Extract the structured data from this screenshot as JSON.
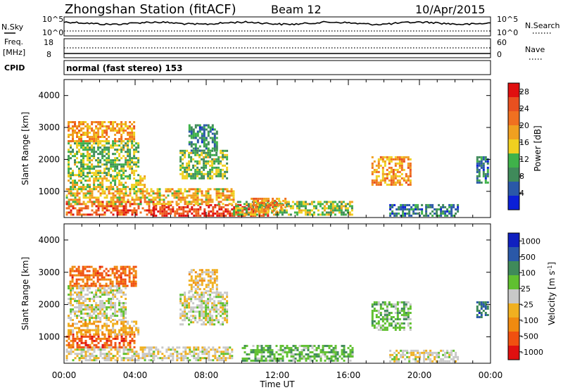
{
  "header": {
    "station": "Zhongshan Station (fitACF)",
    "beam": "Beam 12",
    "date": "10/Apr/2015"
  },
  "noise_panel": {
    "left_label": "N.Sky",
    "right_label": "N.Search",
    "left_ticks": [
      "10^5",
      "10^0"
    ],
    "right_ticks": [
      "10^5",
      "10^0"
    ]
  },
  "freq_panel": {
    "left_label_1": "Freq.",
    "left_label_2": "[MHz]",
    "left_ticks": [
      "18",
      "8"
    ],
    "right_label": "Nave",
    "right_ticks": [
      "60",
      "0"
    ]
  },
  "cpid": {
    "label": "CPID",
    "mode_text": "normal (fast stereo) 153"
  },
  "colors": {
    "power_scale": [
      "#0b1fd8",
      "#2a58a8",
      "#3f8a5a",
      "#3fb24a",
      "#f0d020",
      "#f0a020",
      "#f07020",
      "#e85020",
      "#e01010"
    ],
    "velocity_scale": [
      "#e01010",
      "#f05010",
      "#f08a10",
      "#f0b020",
      "#c8c8c8",
      "#60c030",
      "#3f8a5a",
      "#2a58a8",
      "#1020c0"
    ]
  },
  "chart_data": [
    {
      "type": "heatmap",
      "name": "power-panel",
      "title": "",
      "xlabel": "Time UT",
      "ylabel": "Slant Range [km]",
      "x_ticks": [
        "00:00",
        "04:00",
        "08:00",
        "12:00",
        "16:00",
        "20:00",
        "00:00"
      ],
      "x_range_hours": [
        0,
        24
      ],
      "y_ticks": [
        1000,
        2000,
        3000,
        4000
      ],
      "ylim": [
        180,
        4500
      ],
      "colorbar": {
        "label": "Power [dB]",
        "ticks": [
          "4",
          "8",
          "12",
          "16",
          "20",
          "24",
          "28"
        ],
        "range": [
          0,
          30
        ]
      },
      "patches": [
        {
          "t0": 0.1,
          "t1": 5.0,
          "r0": 250,
          "r1": 700,
          "value": 24
        },
        {
          "t0": 5.0,
          "t1": 11.5,
          "r0": 250,
          "r1": 600,
          "value": 26
        },
        {
          "t0": 0.1,
          "t1": 9.5,
          "r0": 600,
          "r1": 1100,
          "value": 17
        },
        {
          "t0": 0.2,
          "t1": 4.5,
          "r0": 1100,
          "r1": 1500,
          "value": 14
        },
        {
          "t0": 0.2,
          "t1": 4.2,
          "r0": 1500,
          "r1": 2600,
          "value": 12
        },
        {
          "t0": 0.2,
          "t1": 4.0,
          "r0": 2600,
          "r1": 3200,
          "value": 19
        },
        {
          "t0": 6.5,
          "t1": 9.2,
          "r0": 1400,
          "r1": 2300,
          "value": 12
        },
        {
          "t0": 7.0,
          "t1": 8.6,
          "r0": 2300,
          "r1": 3100,
          "value": 8
        },
        {
          "t0": 9.5,
          "t1": 16.2,
          "r0": 250,
          "r1": 700,
          "value": 13
        },
        {
          "t0": 10.5,
          "t1": 12.5,
          "r0": 350,
          "r1": 800,
          "value": 20
        },
        {
          "t0": 17.3,
          "t1": 19.5,
          "r0": 1200,
          "r1": 2100,
          "value": 19
        },
        {
          "t0": 18.3,
          "t1": 22.2,
          "r0": 250,
          "r1": 600,
          "value": 7
        },
        {
          "t0": 23.2,
          "t1": 23.9,
          "r0": 1300,
          "r1": 2100,
          "value": 8
        }
      ]
    },
    {
      "type": "heatmap",
      "name": "velocity-panel",
      "title": "",
      "xlabel": "Time UT",
      "ylabel": "Slant Range [km]",
      "x_ticks": [
        "00:00",
        "04:00",
        "08:00",
        "12:00",
        "16:00",
        "20:00",
        "00:00"
      ],
      "x_range_hours": [
        0,
        24
      ],
      "y_ticks": [
        1000,
        2000,
        3000,
        4000
      ],
      "ylim": [
        180,
        4500
      ],
      "colorbar": {
        "label": "Velocity [m s-1]",
        "ticks": [
          "1000",
          "500",
          "100",
          "25",
          "-25",
          "-100",
          "-500",
          "-1000"
        ],
        "range": [
          -1200,
          1200
        ]
      },
      "patches": [
        {
          "t0": 0.1,
          "t1": 5.0,
          "r0": 250,
          "r1": 700,
          "value": 80
        },
        {
          "t0": 0.1,
          "t1": 4.0,
          "r0": 700,
          "r1": 1100,
          "value": 800
        },
        {
          "t0": 0.2,
          "t1": 4.2,
          "r0": 1100,
          "r1": 1500,
          "value": 300
        },
        {
          "t0": 0.2,
          "t1": 3.5,
          "r0": 1500,
          "r1": 2600,
          "value": 0
        },
        {
          "t0": 0.3,
          "t1": 4.0,
          "r0": 2600,
          "r1": 3200,
          "value": 700
        },
        {
          "t0": 5.0,
          "t1": 9.5,
          "r0": 250,
          "r1": 700,
          "value": 60
        },
        {
          "t0": 6.5,
          "t1": 9.2,
          "r0": 1400,
          "r1": 2400,
          "value": 0
        },
        {
          "t0": 7.0,
          "t1": 8.6,
          "r0": 2400,
          "r1": 3100,
          "value": 200
        },
        {
          "t0": 10.0,
          "t1": 16.2,
          "r0": 250,
          "r1": 750,
          "value": -300
        },
        {
          "t0": 17.3,
          "t1": 19.5,
          "r0": 1200,
          "r1": 2100,
          "value": -250
        },
        {
          "t0": 18.3,
          "t1": 22.2,
          "r0": 250,
          "r1": 600,
          "value": 50
        },
        {
          "t0": 23.2,
          "t1": 23.9,
          "r0": 1600,
          "r1": 2100,
          "value": -700
        }
      ]
    }
  ]
}
